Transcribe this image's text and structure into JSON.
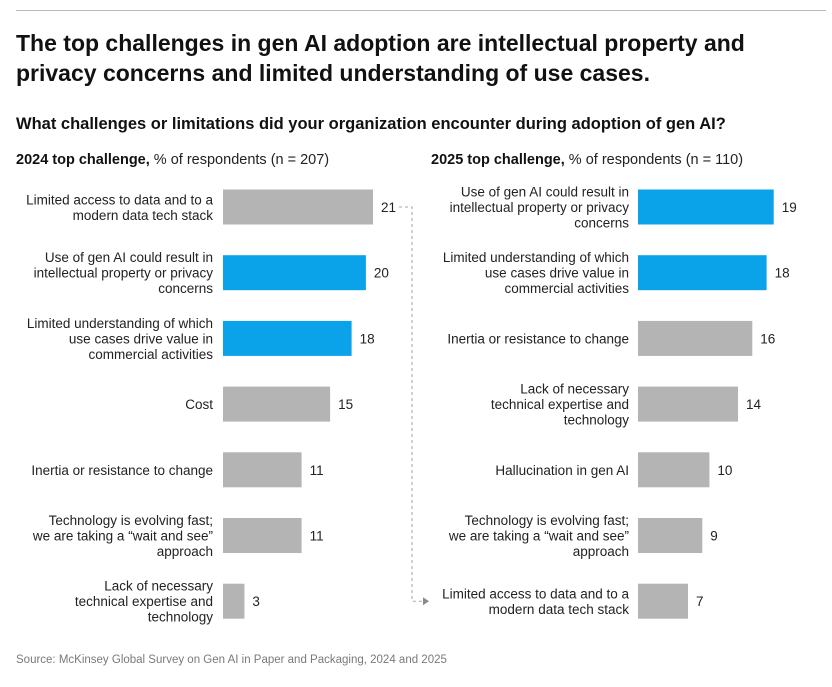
{
  "title": "The top challenges in gen AI adoption are intellectual property and privacy concerns and limited understanding of use cases.",
  "question": "What challenges or limitations did your organization encounter during adoption of gen AI?",
  "source": "Source: McKinsey Global Survey on Gen AI in Paper and Packaging, 2024 and 2025",
  "colors": {
    "highlight": "#0aa3ea",
    "base": "#b4b4b4",
    "connector": "#a6a6a6",
    "label": "#222222"
  },
  "chart_data": [
    {
      "type": "bar",
      "orientation": "horizontal",
      "title_bold": "2024 top challenge,",
      "subtitle": " % of respondents (n = 207)",
      "categories": [
        "Limited access to data and to a modern data tech stack",
        "Use of gen AI could result in intellectual property or privacy concerns",
        "Limited understanding of which use cases drive value in commercial activities",
        "Cost",
        "Inertia or resistance to change",
        "Technology is evolving fast; we are taking a “wait and see” approach",
        "Lack of necessary technical expertise and technology"
      ],
      "label_lines": [
        [
          "Limited access to data and to a",
          "modern data tech stack"
        ],
        [
          "Use of gen AI could result in",
          "intellectual property or privacy",
          "concerns"
        ],
        [
          "Limited understanding of which",
          "use cases drive value in",
          "commercial activities"
        ],
        [
          "Cost"
        ],
        [
          "Inertia or resistance to change"
        ],
        [
          "Technology is evolving fast;",
          "we are taking a “wait and see”",
          "approach"
        ],
        [
          "Lack of necessary",
          "technical expertise and",
          "technology"
        ]
      ],
      "values": [
        21,
        20,
        18,
        15,
        11,
        11,
        3
      ],
      "highlighted": [
        false,
        true,
        true,
        false,
        false,
        false,
        false
      ],
      "value_labels": [
        "21",
        "20",
        "18",
        "15",
        "11",
        "11",
        "3"
      ],
      "xlim": [
        0,
        21
      ]
    },
    {
      "type": "bar",
      "orientation": "horizontal",
      "title_bold": "2025 top challenge,",
      "subtitle": " % of respondents (n = 110)",
      "categories": [
        "Use of gen AI could result in intellectual property or privacy concerns",
        "Limited understanding of which use cases drive value in commercial activities",
        "Inertia or resistance to change",
        "Lack of necessary technical expertise and technology",
        "Hallucination in gen AI",
        "Technology is evolving fast; we are taking a “wait and see” approach",
        "Limited access to data and to a modern data tech stack"
      ],
      "label_lines": [
        [
          "Use of gen AI could result in",
          "intellectual property or privacy",
          "concerns"
        ],
        [
          "Limited understanding of which",
          "use cases drive value in",
          "commercial activities"
        ],
        [
          "Inertia or resistance to change"
        ],
        [
          "Lack of necessary",
          "technical expertise and",
          "technology"
        ],
        [
          "Hallucination in gen AI"
        ],
        [
          "Technology is evolving fast;",
          "we are taking a “wait and see”",
          "approach"
        ],
        [
          "Limited access to data and to a",
          "modern data tech stack"
        ]
      ],
      "values": [
        19,
        18,
        16,
        14,
        10,
        9,
        7
      ],
      "highlighted": [
        true,
        true,
        false,
        false,
        false,
        false,
        false
      ],
      "value_labels": [
        "19",
        "18",
        "16",
        "14",
        "10",
        "9",
        "7"
      ],
      "xlim": [
        0,
        21
      ]
    }
  ]
}
